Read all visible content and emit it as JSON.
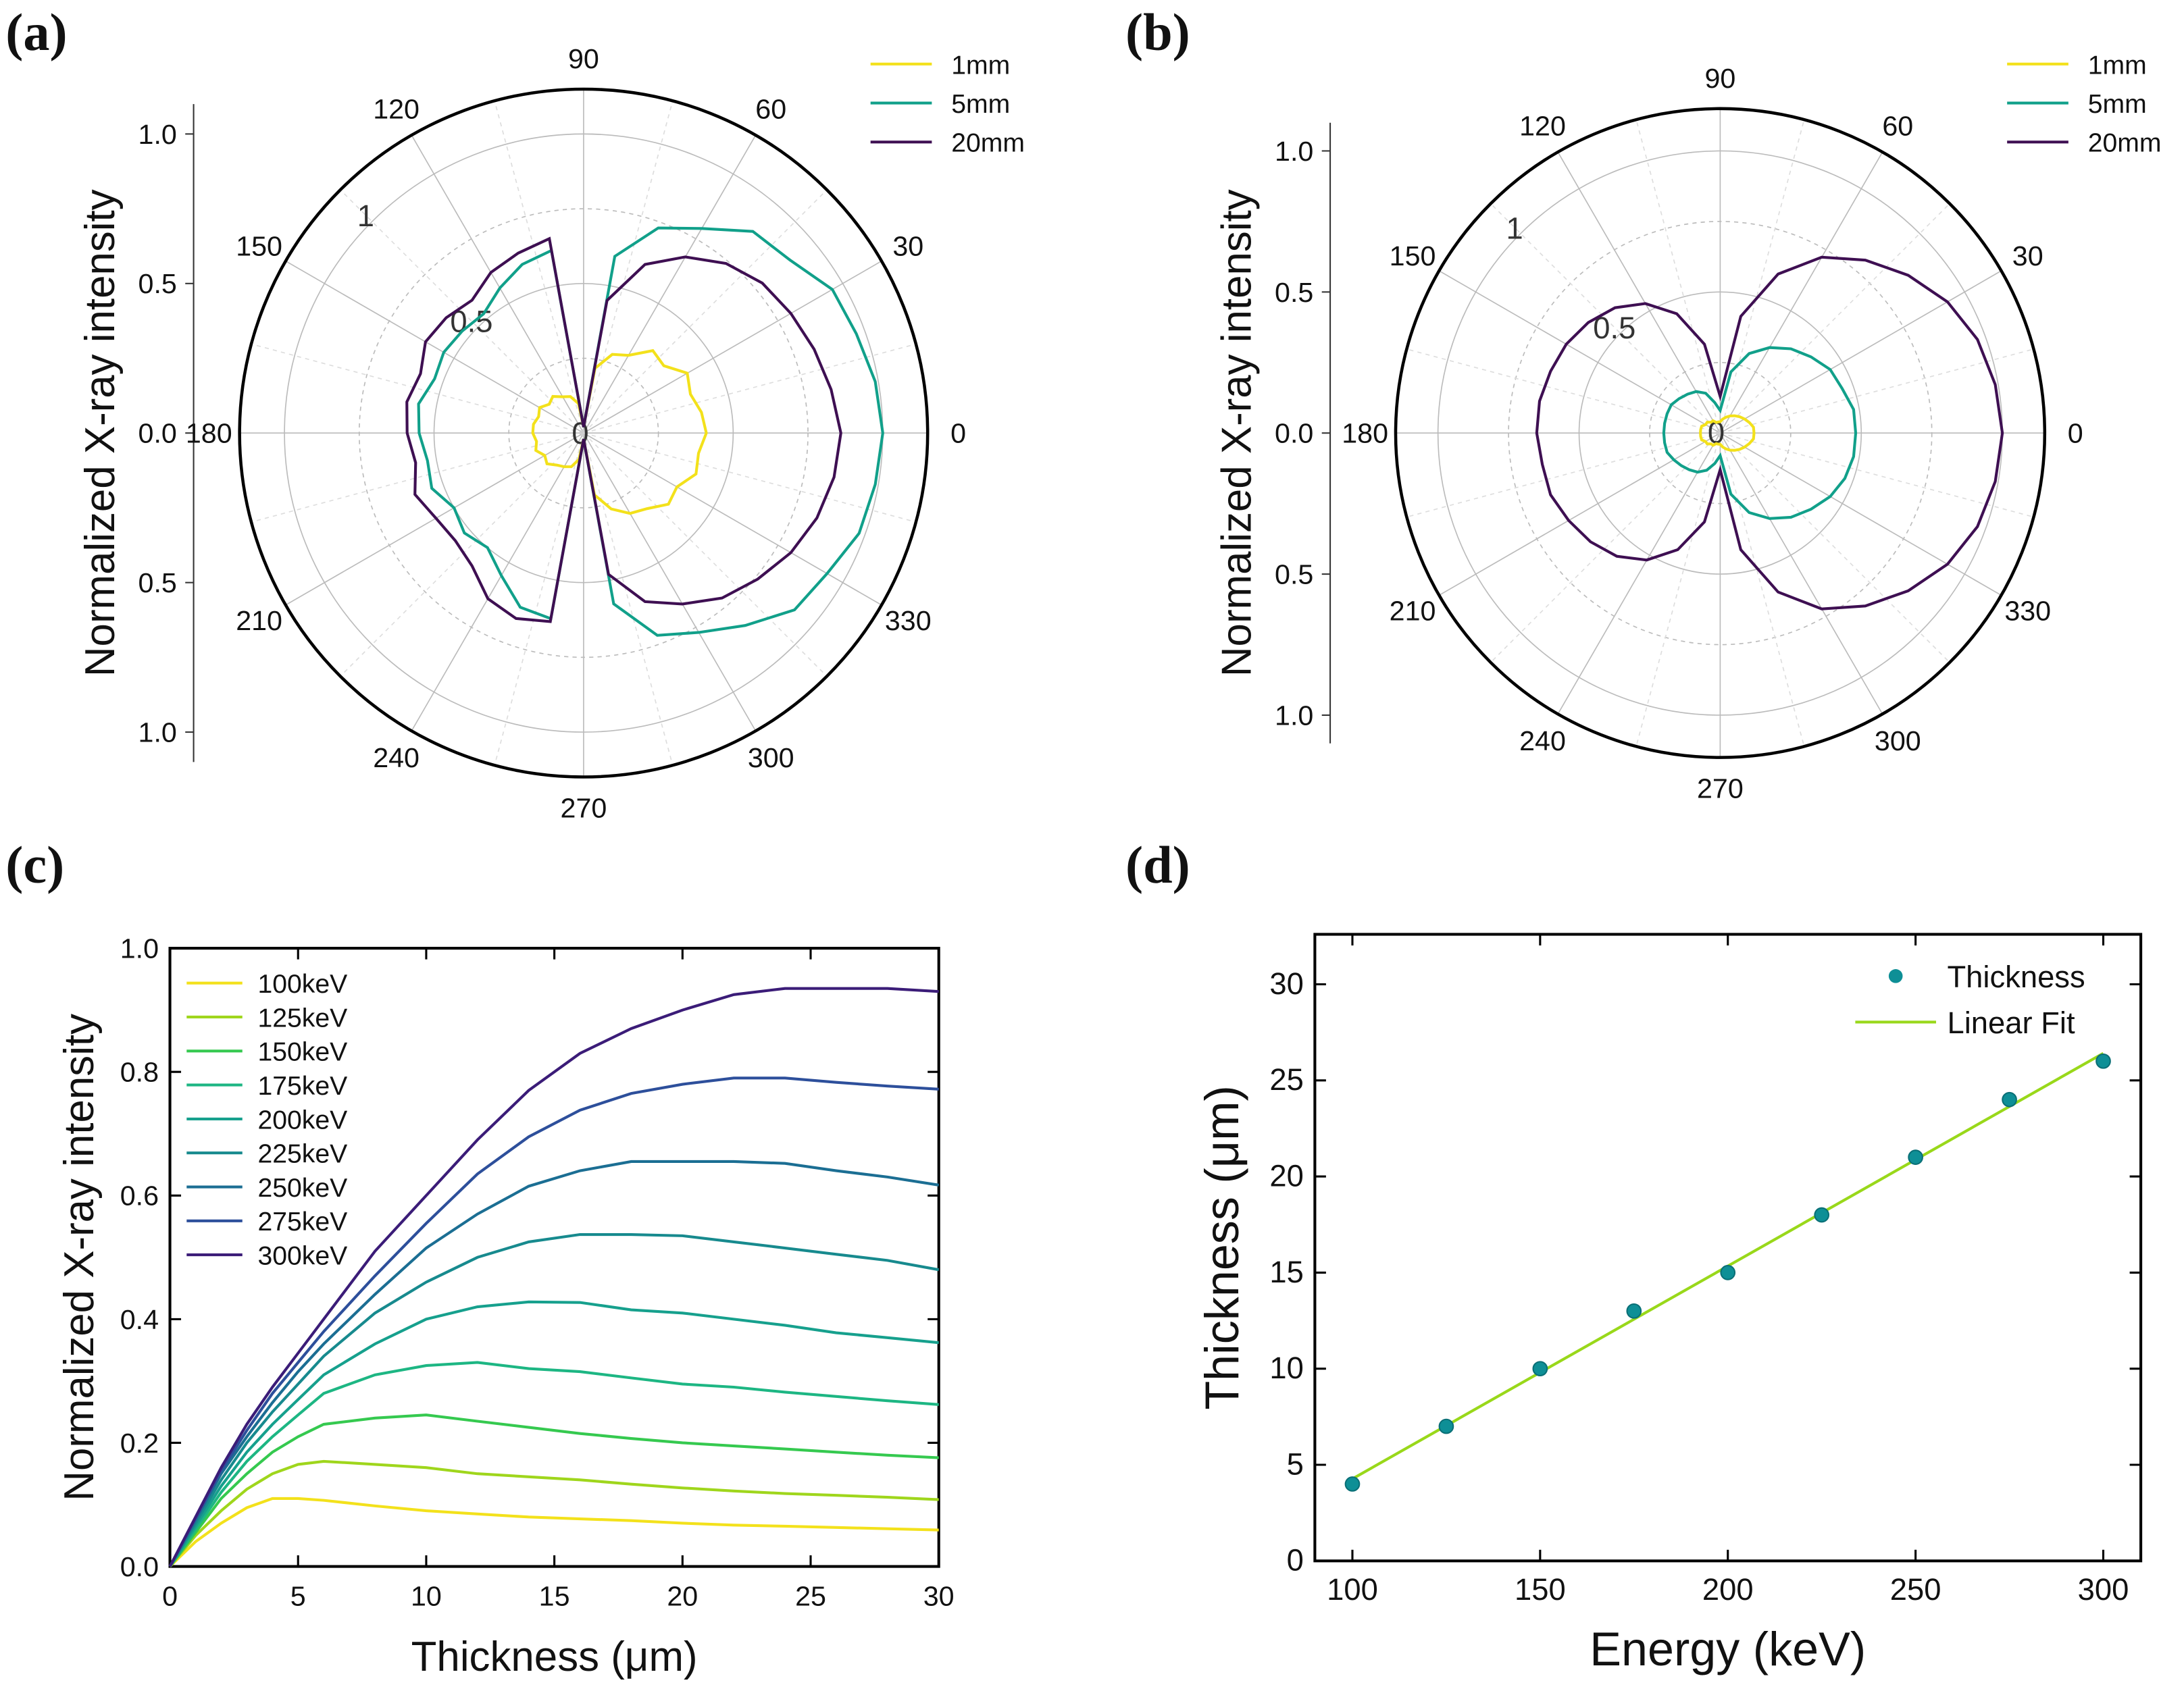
{
  "panel_labels": [
    "(a)",
    "(b)",
    "(c)",
    "(d)"
  ],
  "chart_data": [
    {
      "type": "polar",
      "panel": "(a)",
      "ylabel": "Normalized X-ray intensity",
      "left_axis_ticks": [
        "1.0",
        "0.5",
        "0.0",
        "0.5",
        "1.0"
      ],
      "radial_ticks": [
        "0",
        "0.5",
        "1"
      ],
      "radial_max": 1.15,
      "angle_ticks": [
        "0",
        "30",
        "60",
        "90",
        "120",
        "150",
        "180",
        "210",
        "240",
        "270",
        "300",
        "330"
      ],
      "angles_deg": [
        0,
        10,
        20,
        30,
        40,
        50,
        60,
        70,
        80,
        90,
        100,
        110,
        120,
        130,
        140,
        150,
        160,
        170,
        180,
        190,
        200,
        210,
        220,
        230,
        240,
        250,
        260,
        270,
        280,
        290,
        300,
        310,
        320,
        330,
        340,
        350
      ],
      "series": [
        {
          "name": "1mm",
          "color": "#f3e11b",
          "r": [
            0.41,
            0.4,
            0.38,
            0.4,
            0.35,
            0.36,
            0.3,
            0.28,
            0.22,
            0.02,
            0.1,
            0.13,
            0.14,
            0.16,
            0.15,
            0.17,
            0.16,
            0.17,
            0.17,
            0.16,
            0.17,
            0.15,
            0.16,
            0.14,
            0.13,
            0.12,
            0.09,
            0.02,
            0.21,
            0.27,
            0.31,
            0.33,
            0.37,
            0.36,
            0.4,
            0.39
          ]
        },
        {
          "name": "5mm",
          "color": "#11a08a",
          "r": [
            1.0,
            0.99,
            0.97,
            0.96,
            0.9,
            0.88,
            0.79,
            0.73,
            0.6,
            0.02,
            0.62,
            0.6,
            0.56,
            0.52,
            0.53,
            0.54,
            0.53,
            0.56,
            0.55,
            0.53,
            0.54,
            0.5,
            0.52,
            0.5,
            0.55,
            0.62,
            0.63,
            0.02,
            0.58,
            0.72,
            0.77,
            0.84,
            0.92,
            0.94,
            0.98,
            0.99
          ]
        },
        {
          "name": "20mm",
          "color": "#3e0f52",
          "r": [
            0.86,
            0.84,
            0.82,
            0.8,
            0.78,
            0.74,
            0.68,
            0.6,
            0.45,
            0.02,
            0.66,
            0.64,
            0.62,
            0.58,
            0.6,
            0.61,
            0.58,
            0.6,
            0.59,
            0.57,
            0.6,
            0.57,
            0.56,
            0.58,
            0.64,
            0.66,
            0.64,
            0.02,
            0.48,
            0.6,
            0.66,
            0.72,
            0.76,
            0.8,
            0.83,
            0.85
          ]
        }
      ]
    },
    {
      "type": "polar",
      "panel": "(b)",
      "ylabel": "Normalized X-ray intensity",
      "left_axis_ticks": [
        "1.0",
        "0.5",
        "0.0",
        "0.5",
        "1.0"
      ],
      "radial_ticks": [
        "0",
        "0.5",
        "1"
      ],
      "radial_max": 1.15,
      "angle_ticks": [
        "0",
        "30",
        "60",
        "90",
        "120",
        "150",
        "180",
        "210",
        "240",
        "270",
        "300",
        "330"
      ],
      "angles_deg": [
        0,
        10,
        20,
        30,
        40,
        50,
        60,
        70,
        80,
        90,
        100,
        110,
        120,
        130,
        140,
        150,
        160,
        170,
        180,
        190,
        200,
        210,
        220,
        230,
        240,
        250,
        260,
        270,
        280,
        290,
        300,
        310,
        320,
        330,
        340,
        350
      ],
      "series": [
        {
          "name": "1mm",
          "color": "#f3e11b",
          "r": [
            0.12,
            0.12,
            0.11,
            0.1,
            0.09,
            0.08,
            0.07,
            0.06,
            0.05,
            0.04,
            0.04,
            0.04,
            0.05,
            0.05,
            0.06,
            0.06,
            0.07,
            0.07,
            0.07,
            0.07,
            0.07,
            0.06,
            0.06,
            0.05,
            0.05,
            0.04,
            0.04,
            0.04,
            0.05,
            0.06,
            0.07,
            0.08,
            0.09,
            0.1,
            0.11,
            0.12
          ]
        },
        {
          "name": "5mm",
          "color": "#11a08a",
          "r": [
            0.48,
            0.48,
            0.46,
            0.45,
            0.42,
            0.39,
            0.35,
            0.3,
            0.22,
            0.08,
            0.11,
            0.15,
            0.17,
            0.18,
            0.19,
            0.2,
            0.2,
            0.2,
            0.2,
            0.2,
            0.2,
            0.19,
            0.18,
            0.17,
            0.16,
            0.14,
            0.11,
            0.08,
            0.22,
            0.3,
            0.35,
            0.39,
            0.42,
            0.45,
            0.47,
            0.48
          ]
        },
        {
          "name": "20mm",
          "color": "#3e0f52",
          "r": [
            1.0,
            0.99,
            0.97,
            0.93,
            0.87,
            0.8,
            0.72,
            0.6,
            0.42,
            0.13,
            0.32,
            0.45,
            0.53,
            0.58,
            0.61,
            0.63,
            0.64,
            0.65,
            0.65,
            0.64,
            0.64,
            0.62,
            0.6,
            0.57,
            0.52,
            0.44,
            0.32,
            0.13,
            0.42,
            0.6,
            0.72,
            0.8,
            0.87,
            0.93,
            0.97,
            0.99
          ]
        }
      ]
    },
    {
      "type": "line",
      "panel": "(c)",
      "xlabel": "Thickness (μm)",
      "ylabel": "Normalized X-ray intensity",
      "xlim": [
        0,
        30
      ],
      "ylim": [
        0,
        1.0
      ],
      "xticks": [
        "0",
        "5",
        "10",
        "15",
        "20",
        "25",
        "30"
      ],
      "yticks": [
        "0.0",
        "0.2",
        "0.4",
        "0.6",
        "0.8",
        "1.0"
      ],
      "legend": "top-left",
      "x": [
        0,
        1,
        2,
        3,
        4,
        5,
        6,
        8,
        10,
        12,
        14,
        16,
        18,
        20,
        22,
        24,
        26,
        28,
        30
      ],
      "series": [
        {
          "name": "100keV",
          "color": "#f3e11b",
          "values": [
            0,
            0.04,
            0.07,
            0.095,
            0.11,
            0.11,
            0.107,
            0.098,
            0.09,
            0.085,
            0.08,
            0.077,
            0.074,
            0.07,
            0.067,
            0.065,
            0.063,
            0.061,
            0.059
          ]
        },
        {
          "name": "125keV",
          "color": "#9fd61c",
          "values": [
            0,
            0.05,
            0.09,
            0.125,
            0.15,
            0.165,
            0.17,
            0.165,
            0.16,
            0.15,
            0.145,
            0.14,
            0.133,
            0.127,
            0.122,
            0.118,
            0.115,
            0.112,
            0.108
          ]
        },
        {
          "name": "150keV",
          "color": "#35c94f",
          "values": [
            0,
            0.055,
            0.11,
            0.15,
            0.185,
            0.21,
            0.23,
            0.24,
            0.245,
            0.235,
            0.225,
            0.215,
            0.207,
            0.2,
            0.195,
            0.19,
            0.185,
            0.18,
            0.176
          ]
        },
        {
          "name": "175keV",
          "color": "#1db683",
          "values": [
            0,
            0.06,
            0.12,
            0.17,
            0.21,
            0.245,
            0.28,
            0.31,
            0.325,
            0.33,
            0.32,
            0.315,
            0.305,
            0.295,
            0.29,
            0.282,
            0.275,
            0.268,
            0.262
          ]
        },
        {
          "name": "200keV",
          "color": "#16a08d",
          "values": [
            0,
            0.065,
            0.13,
            0.185,
            0.23,
            0.27,
            0.31,
            0.36,
            0.4,
            0.42,
            0.428,
            0.427,
            0.415,
            0.41,
            0.4,
            0.39,
            0.378,
            0.37,
            0.362
          ]
        },
        {
          "name": "225keV",
          "color": "#178a8e",
          "values": [
            0,
            0.07,
            0.14,
            0.2,
            0.25,
            0.295,
            0.34,
            0.41,
            0.46,
            0.5,
            0.525,
            0.537,
            0.537,
            0.535,
            0.525,
            0.515,
            0.505,
            0.495,
            0.48
          ]
        },
        {
          "name": "250keV",
          "color": "#1b6e93",
          "values": [
            0,
            0.075,
            0.15,
            0.21,
            0.265,
            0.315,
            0.36,
            0.44,
            0.515,
            0.57,
            0.615,
            0.64,
            0.655,
            0.655,
            0.655,
            0.652,
            0.64,
            0.63,
            0.617
          ]
        },
        {
          "name": "275keV",
          "color": "#2d4f9b",
          "values": [
            0,
            0.078,
            0.155,
            0.22,
            0.28,
            0.33,
            0.38,
            0.47,
            0.555,
            0.635,
            0.695,
            0.738,
            0.765,
            0.78,
            0.79,
            0.79,
            0.783,
            0.777,
            0.772
          ]
        },
        {
          "name": "300keV",
          "color": "#3b1c78",
          "values": [
            0,
            0.08,
            0.16,
            0.23,
            0.29,
            0.345,
            0.4,
            0.51,
            0.6,
            0.69,
            0.77,
            0.83,
            0.87,
            0.9,
            0.925,
            0.935,
            0.935,
            0.935,
            0.93
          ]
        }
      ]
    },
    {
      "type": "scatter",
      "panel": "(d)",
      "xlabel": "Energy (keV)",
      "ylabel": "Thickness (μm)",
      "xlim": [
        90,
        310
      ],
      "ylim": [
        0,
        32.6
      ],
      "xticks": [
        "100",
        "150",
        "200",
        "250",
        "300"
      ],
      "yticks": [
        "0",
        "5",
        "10",
        "15",
        "20",
        "25",
        "30"
      ],
      "legend": "top-right",
      "x": [
        100,
        125,
        150,
        175,
        200,
        225,
        250,
        275,
        300
      ],
      "series": [
        {
          "name": "Thickness",
          "color": "#0e8f96",
          "values": [
            4,
            7,
            10,
            13,
            15,
            18,
            21,
            24,
            26
          ]
        },
        {
          "name": "Linear Fit",
          "color": "#99d81a",
          "fit": {
            "slope": 0.1107,
            "intercept": -6.8,
            "x_range": [
              100,
              300
            ]
          }
        }
      ]
    }
  ]
}
